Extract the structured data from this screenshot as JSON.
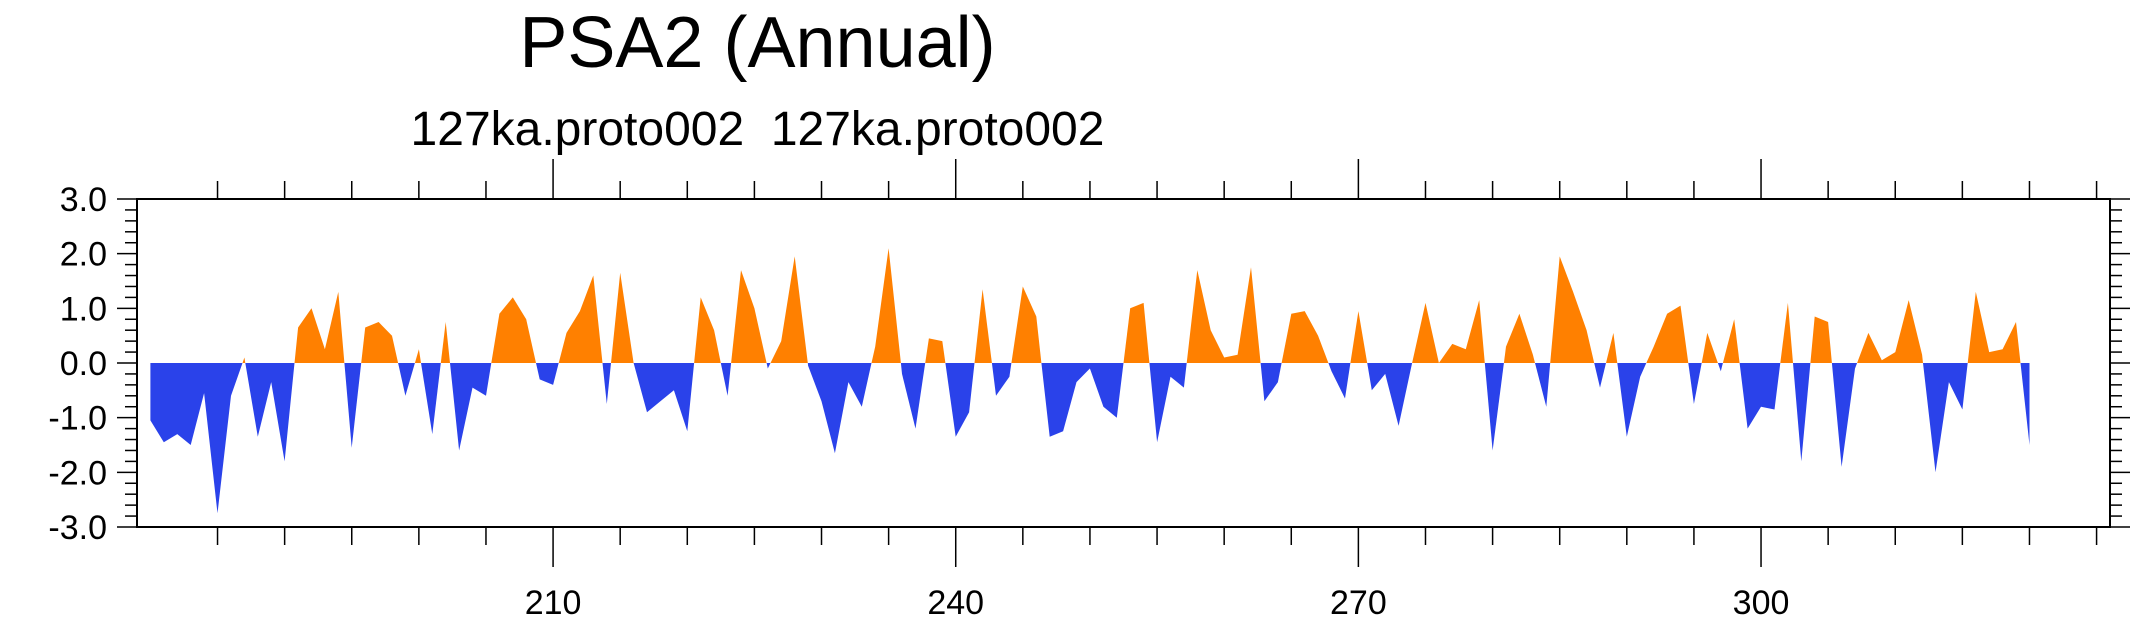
{
  "chart_data": {
    "type": "area",
    "title": "PSA2 (Annual)",
    "subtitle": "127ka.proto002  127ka.proto002",
    "xlabel": "",
    "ylabel": "",
    "xlim": [
      179,
      326
    ],
    "ylim": [
      -3.0,
      3.0
    ],
    "yticks": [
      "3.0",
      "2.0",
      "1.0",
      "0.0",
      "-1.0",
      "-2.0",
      "-3.0"
    ],
    "ytick_values": [
      3,
      2,
      1,
      0,
      -1,
      -2,
      -3
    ],
    "xticks": [
      "210",
      "240",
      "270",
      "300"
    ],
    "xtick_values": [
      210,
      240,
      270,
      300
    ],
    "positive_color": "#ff8000",
    "negative_color": "#2a42ea",
    "grid": false,
    "series": [
      {
        "x_start": 180,
        "values": [
          -1.05,
          -1.45,
          -1.3,
          -1.5,
          -0.55,
          -2.75,
          -0.6,
          0.1,
          -1.35,
          -0.35,
          -1.8,
          0.65,
          1.0,
          0.25,
          1.3,
          -1.55,
          0.65,
          0.75,
          0.5,
          -0.6,
          0.25,
          -1.3,
          0.75,
          -1.6,
          -0.45,
          -0.6,
          0.9,
          1.2,
          0.8,
          -0.3,
          -0.4,
          0.55,
          0.95,
          1.6,
          -0.75,
          1.65,
          0.0,
          -0.9,
          -0.7,
          -0.5,
          -1.25,
          1.2,
          0.6,
          -0.6,
          1.7,
          1.0,
          -0.1,
          0.4,
          1.95,
          -0.05,
          -0.7,
          -1.65,
          -0.35,
          -0.8,
          0.3,
          2.1,
          -0.2,
          -1.2,
          0.45,
          0.4,
          -1.35,
          -0.9,
          1.35,
          -0.6,
          -0.25,
          1.4,
          0.85,
          -1.35,
          -1.25,
          -0.35,
          -0.1,
          -0.8,
          -1.0,
          1.0,
          1.1,
          -1.45,
          -0.25,
          -0.45,
          1.7,
          0.6,
          0.1,
          0.15,
          1.75,
          -0.7,
          -0.35,
          0.9,
          0.95,
          0.5,
          -0.15,
          -0.65,
          0.95,
          -0.5,
          -0.2,
          -1.15,
          0.0,
          1.1,
          0.0,
          0.35,
          0.25,
          1.15,
          -1.6,
          0.3,
          0.9,
          0.15,
          -0.8,
          1.95,
          1.3,
          0.6,
          -0.45,
          0.55,
          -1.35,
          -0.25,
          0.3,
          0.9,
          1.05,
          -0.75,
          0.55,
          -0.15,
          0.8,
          -1.2,
          -0.8,
          -0.85,
          1.1,
          -1.8,
          0.85,
          0.75,
          -1.9,
          -0.1,
          0.55,
          0.05,
          0.2,
          1.15,
          0.15,
          -2.0,
          -0.35,
          -0.85,
          1.3,
          0.2,
          0.25,
          0.75,
          -1.5
        ]
      }
    ]
  }
}
